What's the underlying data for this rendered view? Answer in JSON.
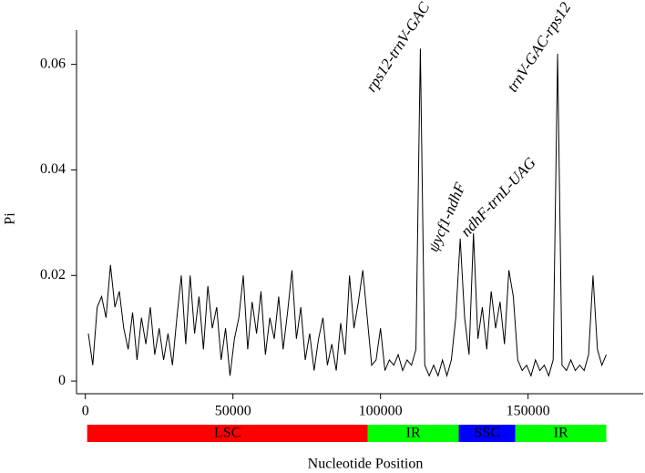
{
  "chart_data": {
    "type": "line",
    "xlabel": "Nucleotide Position",
    "ylabel": "Pi",
    "xlim": [
      -3000,
      189000
    ],
    "ylim": [
      -0.0024,
      0.0665
    ],
    "xticks": [
      0,
      50000,
      100000,
      150000
    ],
    "yticks": [
      0,
      0.02,
      0.04,
      0.06
    ],
    "color": "#000000",
    "x": [
      1000,
      2500,
      4000,
      5500,
      7000,
      8500,
      10000,
      11500,
      13000,
      14500,
      16000,
      17500,
      19000,
      20500,
      22000,
      23500,
      25000,
      26500,
      28000,
      29500,
      31000,
      32500,
      34000,
      35500,
      37000,
      38500,
      40000,
      41500,
      43000,
      44500,
      46000,
      47500,
      49000,
      50500,
      52000,
      53500,
      55000,
      56500,
      58000,
      59500,
      61000,
      62500,
      64000,
      65500,
      67000,
      68500,
      70000,
      71500,
      73000,
      74500,
      76000,
      77500,
      79000,
      80500,
      82000,
      83500,
      85000,
      86500,
      88000,
      89500,
      91000,
      92500,
      94000,
      95500,
      97000,
      98500,
      100000,
      101500,
      103000,
      104500,
      106000,
      107500,
      109000,
      110500,
      112000,
      113500,
      115000,
      116500,
      118000,
      119500,
      121000,
      122500,
      124000,
      125500,
      127000,
      128500,
      130000,
      131500,
      133000,
      134500,
      136000,
      137500,
      139000,
      140500,
      142000,
      143500,
      145000,
      146500,
      148000,
      149500,
      151000,
      152500,
      154000,
      155500,
      157000,
      158500,
      160000,
      161500,
      163000,
      164500,
      166000,
      167500,
      169000,
      170500,
      172000,
      173500,
      175000,
      176500
    ],
    "values": [
      0.009,
      0.003,
      0.014,
      0.016,
      0.012,
      0.022,
      0.014,
      0.017,
      0.01,
      0.006,
      0.013,
      0.004,
      0.012,
      0.007,
      0.014,
      0.005,
      0.01,
      0.004,
      0.009,
      0.003,
      0.012,
      0.02,
      0.007,
      0.02,
      0.009,
      0.016,
      0.006,
      0.018,
      0.01,
      0.014,
      0.004,
      0.01,
      0.001,
      0.008,
      0.012,
      0.02,
      0.006,
      0.015,
      0.009,
      0.017,
      0.005,
      0.012,
      0.008,
      0.016,
      0.006,
      0.013,
      0.021,
      0.008,
      0.014,
      0.004,
      0.009,
      0.002,
      0.008,
      0.012,
      0.003,
      0.007,
      0.002,
      0.011,
      0.005,
      0.02,
      0.01,
      0.015,
      0.021,
      0.012,
      0.003,
      0.004,
      0.01,
      0.002,
      0.004,
      0.003,
      0.005,
      0.002,
      0.004,
      0.003,
      0.006,
      0.063,
      0.003,
      0.001,
      0.003,
      0.001,
      0.004,
      0.001,
      0.004,
      0.012,
      0.027,
      0.012,
      0.005,
      0.028,
      0.008,
      0.014,
      0.006,
      0.017,
      0.01,
      0.015,
      0.007,
      0.021,
      0.016,
      0.004,
      0.002,
      0.003,
      0.001,
      0.004,
      0.002,
      0.003,
      0.001,
      0.004,
      0.062,
      0.003,
      0.002,
      0.004,
      0.002,
      0.003,
      0.002,
      0.005,
      0.02,
      0.006,
      0.003,
      0.005
    ],
    "annotations": [
      "rps12-trnV-GAC",
      "trnV-GAC-rps12",
      "ψycf1-ndhF",
      "ndhF-trnL-UAG"
    ],
    "regions": [
      {
        "name": "LSC",
        "start": 600,
        "end": 95700,
        "color": "#ff0000"
      },
      {
        "name": "IR",
        "start": 95700,
        "end": 126500,
        "color": "#00ff00"
      },
      {
        "name": "SSC",
        "start": 126500,
        "end": 145700,
        "color": "#0000ff"
      },
      {
        "name": "IR",
        "start": 145700,
        "end": 176500,
        "color": "#00ff00"
      }
    ]
  }
}
